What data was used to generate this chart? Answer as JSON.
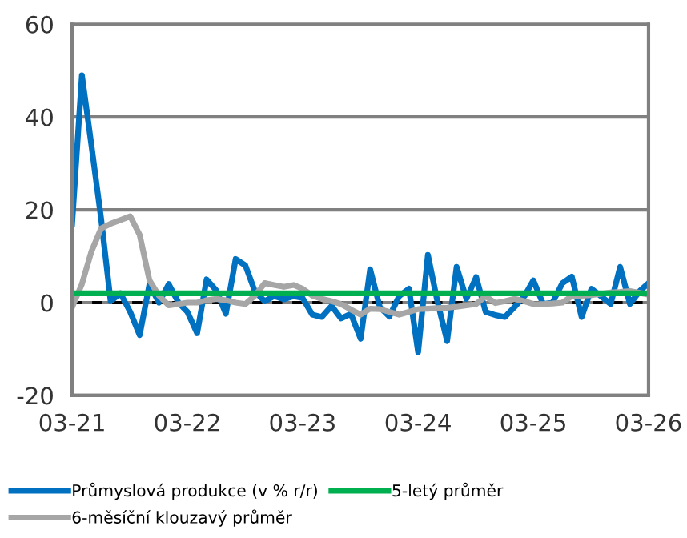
{
  "chart_data": {
    "type": "line",
    "x": [
      "2021-03",
      "2021-04",
      "2021-05",
      "2021-06",
      "2021-07",
      "2021-08",
      "2021-09",
      "2021-10",
      "2021-11",
      "2021-12",
      "2022-01",
      "2022-02",
      "2022-03",
      "2022-04",
      "2022-05",
      "2022-06",
      "2022-07",
      "2022-08",
      "2022-09",
      "2022-10",
      "2022-11",
      "2022-12",
      "2023-01",
      "2023-02",
      "2023-03",
      "2023-04",
      "2023-05",
      "2023-06",
      "2023-07",
      "2023-08",
      "2023-09",
      "2023-10",
      "2023-11",
      "2023-12",
      "2024-01",
      "2024-02",
      "2024-03",
      "2024-04",
      "2024-05",
      "2024-06",
      "2024-07",
      "2024-08",
      "2024-09",
      "2024-10",
      "2024-11",
      "2024-12",
      "2025-01",
      "2025-02",
      "2025-03",
      "2025-04",
      "2025-05",
      "2025-06",
      "2025-07",
      "2025-08",
      "2025-09",
      "2025-10",
      "2025-11",
      "2025-12",
      "2026-01",
      "2026-02",
      "2026-03"
    ],
    "series": [
      {
        "name": "Průmyslová produkce (v % r/r)",
        "color": "#0070c0",
        "values": [
          17,
          49,
          34,
          18,
          0.3,
          2,
          -2,
          -7,
          4,
          0,
          4,
          0,
          -2,
          -6.6,
          5,
          2.6,
          -2.4,
          9.4,
          8,
          2.4,
          0.3,
          1.4,
          0.7,
          1.4,
          1,
          -2.6,
          -3.1,
          -0.7,
          -3.4,
          -2.4,
          -7.8,
          7.2,
          -1,
          -3,
          1.4,
          3,
          -10.7,
          10.3,
          0.3,
          -8.3,
          7.7,
          0.8,
          5.5,
          -2,
          -2.7,
          -3.1,
          -0.9,
          1.4,
          4.8,
          -0.3,
          0,
          4.2,
          5.6,
          -3.1,
          3,
          1.4,
          -0.3,
          7.7,
          -0.3,
          2.5,
          4.2
        ]
      },
      {
        "name": "6-měsíční klouzavý průměr",
        "color": "#a6a6a6",
        "values": [
          -1,
          4,
          11,
          16,
          17,
          17.8,
          18.6,
          14.6,
          4.8,
          1.5,
          -0.6,
          -0.3,
          0,
          0,
          0.5,
          0.8,
          0.5,
          0,
          -0.3,
          1.5,
          4.2,
          3.8,
          3.4,
          3.8,
          3,
          1.5,
          0.8,
          0.3,
          -0.3,
          -1.5,
          -2.6,
          -1.3,
          -1.4,
          -2,
          -2.6,
          -2,
          -1.4,
          -1.3,
          -1.2,
          -1.1,
          -0.9,
          -0.6,
          -0.3,
          1.4,
          -0.1,
          0.3,
          0.8,
          0.3,
          -0.3,
          -0.3,
          -0.2,
          0,
          1.4,
          1.5,
          1.6,
          1.9,
          2.2,
          2.3,
          2.5,
          2.1,
          1.7
        ]
      },
      {
        "name": "5-letý průměr",
        "color": "#00b050",
        "values": [
          2,
          2,
          2,
          2,
          2,
          2,
          2,
          2,
          2,
          2,
          2,
          2,
          2,
          2,
          2,
          2,
          2,
          2,
          2,
          2,
          2,
          2,
          2,
          2,
          2,
          2,
          2,
          2,
          2,
          2,
          2,
          2,
          2,
          2,
          2,
          2,
          2,
          2,
          2,
          2,
          2,
          2,
          2,
          2,
          2,
          2,
          2,
          2,
          2,
          2,
          2,
          2,
          2,
          2,
          2,
          2,
          2,
          2,
          2,
          2,
          2
        ]
      }
    ],
    "ref_lines": [
      {
        "axis": "y",
        "value": 0,
        "label": null,
        "color": "#000000",
        "line_style": "dashed"
      }
    ],
    "xlim": [
      "2021-03",
      "2026-03"
    ],
    "xticks": [
      {
        "value": "2021-03",
        "label": "03-21"
      },
      {
        "value": "2022-03",
        "label": "03-22"
      },
      {
        "value": "2023-03",
        "label": "03-23"
      },
      {
        "value": "2024-03",
        "label": "03-24"
      },
      {
        "value": "2025-03",
        "label": "03-25"
      },
      {
        "value": "2026-03",
        "label": "03-26"
      }
    ],
    "ylim": [
      -20,
      60
    ],
    "yticks": [
      -20,
      0,
      20,
      40,
      60
    ],
    "grid": "y",
    "legend": "bottom",
    "marker": "none",
    "line_style": "solid"
  }
}
